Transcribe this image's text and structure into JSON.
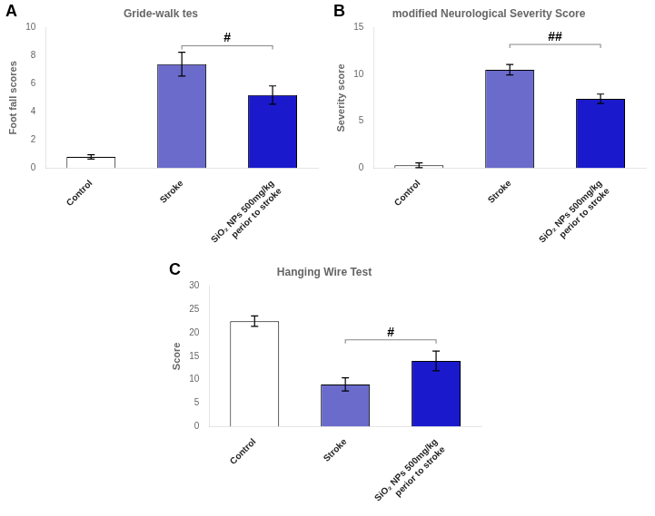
{
  "chart_data": [
    {
      "type": "bar",
      "panel_label": "A",
      "title": "Gride-walk tes",
      "ylabel": "Foot fall scores",
      "categories": [
        "Control",
        "Stroke",
        "SiO₂ NPs 500mg/kg\nperior to stroke"
      ],
      "values": [
        0.8,
        7.4,
        5.2
      ],
      "errors": [
        0.15,
        0.85,
        0.65
      ],
      "colors": [
        "#ffffff",
        "#6b6bcc",
        "#1a1acc"
      ],
      "ylim": [
        0,
        10
      ],
      "yticks": [
        0,
        2,
        4,
        6,
        8,
        10
      ],
      "grid": false,
      "annotations": [
        {
          "text": "#",
          "y": 8.7,
          "x": [
            "Stroke",
            "SiO₂ NPs 500mg/kg\nperior to stroke"
          ]
        }
      ]
    },
    {
      "type": "bar",
      "panel_label": "B",
      "title": "modified Neurological Severity Score",
      "ylabel": "Severity score",
      "categories": [
        "Control",
        "Stroke",
        "SiO₂ NPs 500mg/kg\nperior to stroke"
      ],
      "values": [
        0.3,
        10.5,
        7.4
      ],
      "errors": [
        0.25,
        0.55,
        0.5
      ],
      "colors": [
        "#ffffff",
        "#6b6bcc",
        "#1a1acc"
      ],
      "ylim": [
        0,
        15
      ],
      "yticks": [
        0,
        5,
        10,
        15
      ],
      "grid": false,
      "annotations": [
        {
          "text": "##",
          "y": 13.2,
          "x": [
            "Stroke",
            "SiO₂ NPs 500mg/kg\nperior to stroke"
          ]
        }
      ]
    },
    {
      "type": "bar",
      "panel_label": "C",
      "title": "Hanging Wire Test",
      "ylabel": "Score",
      "categories": [
        "Control",
        "Stroke",
        "SiO₂ NPs 500mg/kg\nperior to stroke"
      ],
      "values": [
        22.5,
        9.0,
        14.0
      ],
      "errors": [
        1.1,
        1.4,
        2.1
      ],
      "colors": [
        "#ffffff",
        "#6b6bcc",
        "#1a1acc"
      ],
      "ylim": [
        0,
        30
      ],
      "yticks": [
        0,
        5,
        10,
        15,
        20,
        25,
        30
      ],
      "grid": false,
      "annotations": [
        {
          "text": "#",
          "y": 18.5,
          "x": [
            "Stroke",
            "SiO₂ NPs 500mg/kg\nperior to stroke"
          ]
        }
      ]
    }
  ]
}
